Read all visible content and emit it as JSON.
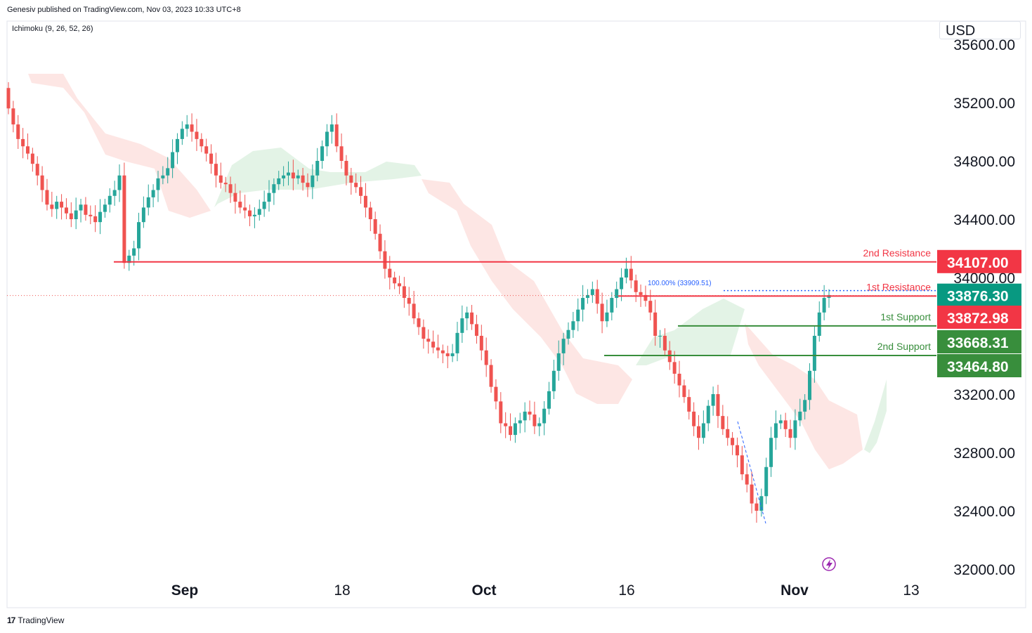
{
  "header": {
    "publisher": "Genesiv published on TradingView.com, Nov 03, 2023 10:33 UTC+8",
    "indicator": "Ichimoku (9, 26, 52, 26)",
    "currency": "USD"
  },
  "footer": {
    "brand": "TradingView",
    "logo_mark": "17"
  },
  "colors": {
    "up": "#26a69a",
    "down": "#ef5350",
    "resistance": "#f23645",
    "support": "#388e3c",
    "last_price": "#089981",
    "cloud_bear": "#fde0dd",
    "cloud_bull": "#e0f2e3",
    "fib": "#2962ff"
  },
  "chart_data": {
    "type": "candlestick",
    "title": "",
    "y_axis": {
      "ticks": [
        "32000.00",
        "32400.00",
        "32800.00",
        "33200.00",
        "34000.00",
        "34400.00",
        "34800.00",
        "35200.00",
        "35600.00"
      ],
      "range": [
        32000,
        35600
      ]
    },
    "x_axis": {
      "ticks": [
        {
          "label": "Sep",
          "bold": true
        },
        {
          "label": "18",
          "bold": false
        },
        {
          "label": "Oct",
          "bold": true
        },
        {
          "label": "16",
          "bold": false
        },
        {
          "label": "Nov",
          "bold": true
        },
        {
          "label": "13",
          "bold": false
        }
      ]
    },
    "levels": [
      {
        "name": "2nd Resistance",
        "value": 34107.0,
        "badge": "34107.00",
        "kind": "resistance"
      },
      {
        "name": "1st Resistance",
        "value": 33872.98,
        "badge": "33872.98",
        "kind": "resistance"
      },
      {
        "name": "1st Support",
        "value": 33668.31,
        "badge": "33668.31",
        "kind": "support"
      },
      {
        "name": "2nd Support",
        "value": 33464.8,
        "badge": "33464.80",
        "kind": "support"
      }
    ],
    "last_price": {
      "value": 33876.3,
      "badge": "33876.30"
    },
    "fib_annotation": "100.00% (33909.51)",
    "close_series": [
      35160,
      35050,
      34950,
      34900,
      34850,
      34780,
      34700,
      34600,
      34500,
      34470,
      34520,
      34480,
      34440,
      34400,
      34460,
      34500,
      34430,
      34420,
      34380,
      34450,
      34500,
      34560,
      34600,
      34700,
      34100,
      34150,
      34200,
      34380,
      34480,
      34550,
      34600,
      34680,
      34700,
      34750,
      34860,
      34950,
      35020,
      35050,
      35000,
      34950,
      34900,
      34850,
      34780,
      34700,
      34650,
      34640,
      34580,
      34520,
      34480,
      34460,
      34420,
      34430,
      34470,
      34520,
      34580,
      34640,
      34680,
      34700,
      34720,
      34680,
      34700,
      34650,
      34620,
      34700,
      34800,
      34900,
      35000,
      35050,
      34900,
      34800,
      34700,
      34650,
      34620,
      34560,
      34480,
      34400,
      34300,
      34180,
      34060,
      34000,
      33960,
      33940,
      33860,
      33820,
      33720,
      33660,
      33580,
      33560,
      33520,
      33500,
      33480,
      33460,
      33480,
      33620,
      33720,
      33760,
      33680,
      33600,
      33500,
      33400,
      33250,
      33150,
      33000,
      32980,
      32920,
      33000,
      33020,
      33080,
      33060,
      32980,
      33000,
      33100,
      33220,
      33360,
      33480,
      33580,
      33640,
      33700,
      33780,
      33860,
      33880,
      33920,
      33820,
      33700,
      33760,
      33860,
      33920,
      34000,
      34060,
      33980,
      33900,
      33880,
      33840,
      33760,
      33600,
      33600,
      33500,
      33420,
      33340,
      33260,
      33180,
      33080,
      32980,
      32900,
      33000,
      33120,
      33200,
      33050,
      32960,
      32900,
      32850,
      32780,
      32650,
      32580,
      32450,
      32400,
      32500,
      32700,
      32900,
      33000,
      33020,
      32960,
      32900,
      33020,
      33080,
      33160,
      33360,
      33600,
      33760,
      33860,
      33880
    ],
    "series": [
      {
        "name": "2nd Resistance",
        "values": []
      },
      {
        "name": "1st Resistance",
        "values": []
      },
      {
        "name": "1st Support",
        "values": []
      },
      {
        "name": "2nd Support",
        "values": []
      }
    ],
    "grid": false
  }
}
